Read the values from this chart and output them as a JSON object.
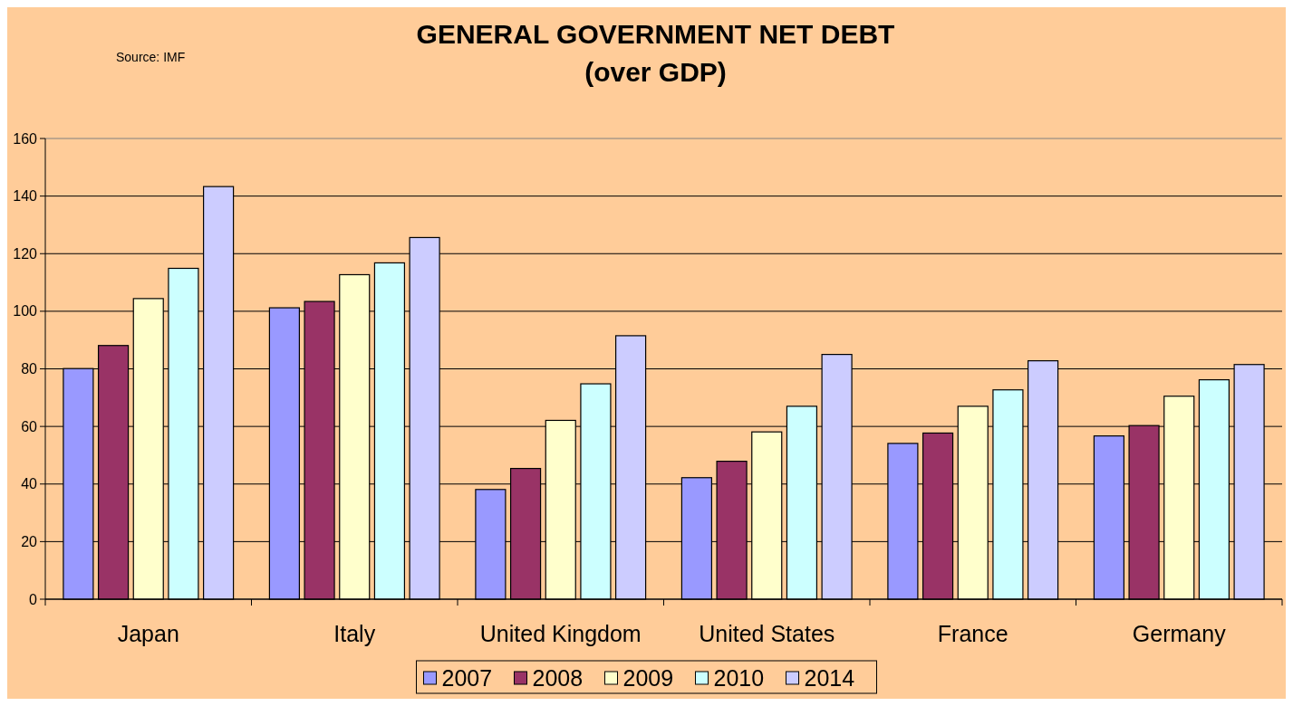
{
  "chart_data": {
    "type": "bar",
    "title": "GENERAL GOVERNMENT NET DEBT",
    "subtitle": "(over GDP)",
    "annotations": [
      "Source: IMF"
    ],
    "categories": [
      "Japan",
      "Italy",
      "United Kingdom",
      "United States",
      "France",
      "Germany"
    ],
    "series": [
      {
        "name": "2007",
        "color": "#9999ff",
        "values": [
          80.1,
          101.2,
          38.1,
          42.2,
          54.1,
          56.7
        ]
      },
      {
        "name": "2008",
        "color": "#993366",
        "values": [
          88.1,
          103.4,
          45.4,
          47.9,
          57.7,
          60.3
        ]
      },
      {
        "name": "2009",
        "color": "#ffffcc",
        "values": [
          104.4,
          112.7,
          62.1,
          58.1,
          67.0,
          70.5
        ]
      },
      {
        "name": "2010",
        "color": "#ccffff",
        "values": [
          114.9,
          116.8,
          74.8,
          67.0,
          72.7,
          76.2
        ]
      },
      {
        "name": "2014",
        "color": "#ccccff",
        "values": [
          143.3,
          125.6,
          91.5,
          85.0,
          82.8,
          81.5
        ]
      }
    ],
    "ylim": [
      0,
      160
    ],
    "yticks": [
      0,
      20,
      40,
      60,
      80,
      100,
      120,
      140,
      160
    ],
    "grid": "y",
    "legend": "bottom"
  }
}
